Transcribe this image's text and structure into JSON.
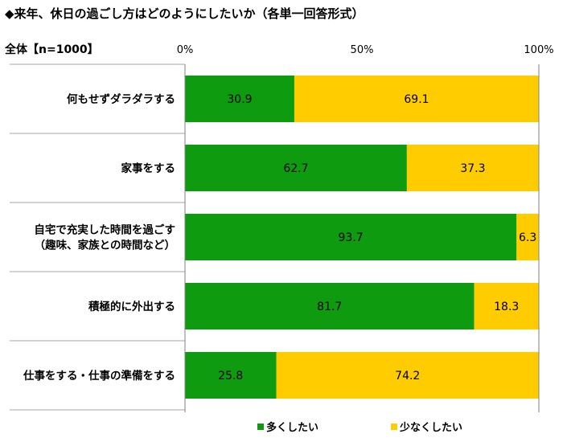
{
  "chart_data": {
    "type": "bar",
    "orientation": "horizontal",
    "stacked": true,
    "title": "◆来年、休日の過ごし方はどのようにしたいか（各単一回答形式）",
    "sample_label": "全体【n=1000】",
    "xlim": [
      0,
      100
    ],
    "x_ticks": [
      "0%",
      "50%",
      "100%"
    ],
    "grid": false,
    "legend_position": "bottom",
    "categories": [
      [
        "何もせずダラダラする"
      ],
      [
        "家事をする"
      ],
      [
        "自宅で充実した時間を過ごす",
        "（趣味、家族との時間など）"
      ],
      [
        "積極的に外出する"
      ],
      [
        "仕事をする・仕事の準備をする"
      ]
    ],
    "series": [
      {
        "name": "多くしたい",
        "color": "#0f9b0f",
        "values": [
          30.9,
          62.7,
          93.7,
          81.7,
          25.8
        ]
      },
      {
        "name": "少なくしたい",
        "color": "#ffcc00",
        "values": [
          69.1,
          37.3,
          6.3,
          18.3,
          74.2
        ]
      }
    ]
  }
}
